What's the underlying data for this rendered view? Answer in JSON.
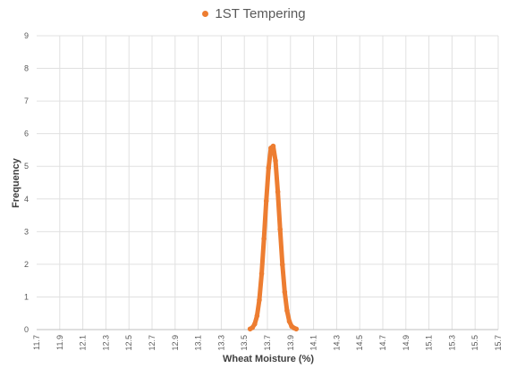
{
  "colors": {
    "series": "#ED7D31",
    "grid": "#E0E0E0",
    "axis": "#BFBFBF"
  },
  "chart_data": {
    "type": "scatter",
    "title": "",
    "xlabel": "Wheat Moisture (%)",
    "ylabel": "Frequency",
    "xlim": [
      11.7,
      15.7
    ],
    "ylim": [
      0,
      9
    ],
    "x_ticks": [
      "11.7",
      "11.9",
      "12.1",
      "12.3",
      "12.5",
      "12.7",
      "12.9",
      "13.1",
      "13.3",
      "13.5",
      "13.7",
      "13.9",
      "14.1",
      "14.3",
      "14.5",
      "14.7",
      "14.9",
      "15.1",
      "15.3",
      "15.5",
      "15.7"
    ],
    "y_ticks": [
      "0",
      "1",
      "2",
      "3",
      "4",
      "5",
      "6",
      "7",
      "8",
      "9"
    ],
    "grid": true,
    "legend": "top-center",
    "series": [
      {
        "name": "1ST Tempering",
        "x": [
          13.55,
          13.57,
          13.59,
          13.61,
          13.63,
          13.65,
          13.67,
          13.69,
          13.71,
          13.73,
          13.75,
          13.77,
          13.79,
          13.81,
          13.83,
          13.85,
          13.87,
          13.89,
          13.91,
          13.93,
          13.95
        ],
        "y": [
          0.02,
          0.06,
          0.17,
          0.42,
          0.91,
          1.71,
          2.78,
          3.94,
          4.95,
          5.56,
          5.62,
          5.17,
          4.22,
          3.07,
          1.99,
          1.15,
          0.58,
          0.25,
          0.1,
          0.05,
          0.02
        ]
      }
    ]
  }
}
